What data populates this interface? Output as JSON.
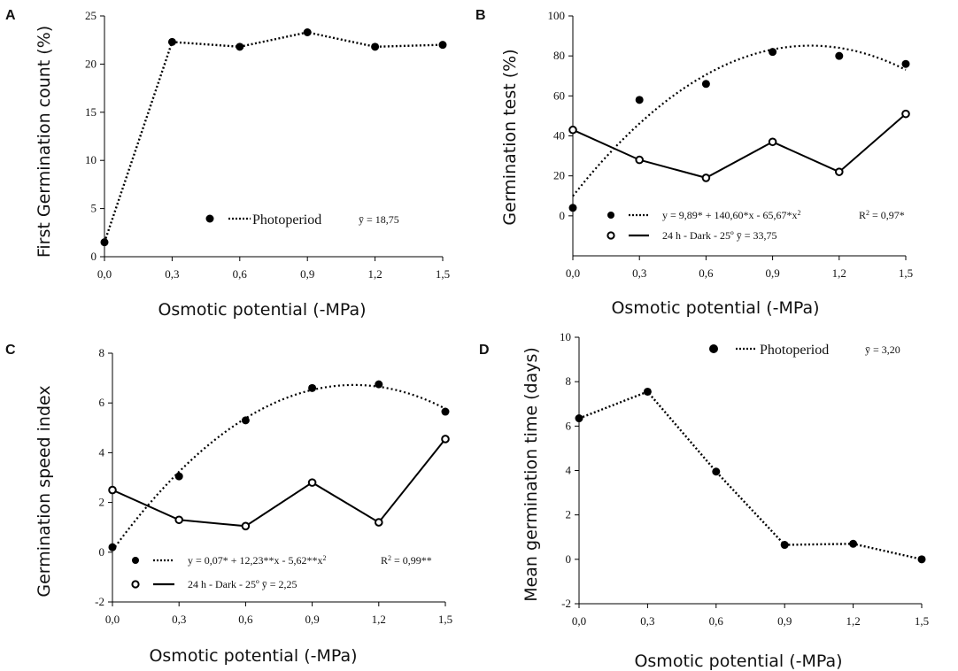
{
  "chart_data": [
    {
      "panel": "A",
      "type": "line",
      "xlabel": "Osmotic potential (-MPa)",
      "ylabel": "First Germination count (%)",
      "xticks": [
        "0,0",
        "0,3",
        "0,6",
        "0,9",
        "1,2",
        "1,5"
      ],
      "yticks": [
        "0",
        "5",
        "10",
        "15",
        "20",
        "25"
      ],
      "xlim": [
        0,
        1.5
      ],
      "ylim": [
        0,
        25
      ],
      "series": [
        {
          "name": "Photoperiod",
          "marker": "filled",
          "line": "dotted",
          "x": [
            0,
            0.3,
            0.6,
            0.9,
            1.2,
            1.5
          ],
          "y": [
            1.5,
            22.3,
            21.8,
            23.3,
            21.8,
            22.0
          ]
        }
      ],
      "legend": [
        {
          "label": "Photoperiod",
          "stat": "ȳ = 18,75",
          "marker": "filled",
          "line": "dotted"
        }
      ]
    },
    {
      "panel": "B",
      "type": "scatter",
      "xlabel": "Osmotic potential (-MPa)",
      "ylabel": "Germination test (%)",
      "xticks": [
        "0,0",
        "0,3",
        "0,6",
        "0,9",
        "1,2",
        "1,5"
      ],
      "yticks": [
        "0",
        "20",
        "40",
        "60",
        "80",
        "100"
      ],
      "xlim": [
        0,
        1.5
      ],
      "ylim": [
        -20,
        100
      ],
      "series": [
        {
          "marker": "filled",
          "line": "none",
          "x": [
            0,
            0.3,
            0.6,
            0.9,
            1.2,
            1.5
          ],
          "y": [
            4,
            58,
            66,
            82,
            80,
            76
          ],
          "fit": {
            "a": 9.89,
            "b": 140.6,
            "c": -65.67,
            "line": "dotted"
          }
        },
        {
          "marker": "open",
          "line": "solid",
          "x": [
            0,
            0.3,
            0.6,
            0.9,
            1.2,
            1.5
          ],
          "y": [
            43,
            28,
            19,
            37,
            22,
            51
          ]
        }
      ],
      "legend": [
        {
          "label": "y = 9,89* + 140,60*x - 65,67*x",
          "sup": "2",
          "stat": "R",
          "stat_sup": "2",
          "stat_tail": " = 0,97*",
          "marker": "filled",
          "line": "dotted"
        },
        {
          "label": "24 h - Dark - 25º  ȳ = 33,75",
          "marker": "open",
          "line": "solid"
        }
      ]
    },
    {
      "panel": "C",
      "type": "scatter",
      "xlabel": "Osmotic potential (-MPa)",
      "ylabel": "Germination speed index",
      "xticks": [
        "0,0",
        "0,3",
        "0,6",
        "0,9",
        "1,2",
        "1,5"
      ],
      "yticks": [
        "-2",
        "0",
        "2",
        "4",
        "6",
        "8"
      ],
      "xlim": [
        0,
        1.5
      ],
      "ylim": [
        -2,
        8
      ],
      "series": [
        {
          "marker": "filled",
          "line": "none",
          "x": [
            0,
            0.3,
            0.6,
            0.9,
            1.2,
            1.5
          ],
          "y": [
            0.2,
            3.05,
            5.3,
            6.6,
            6.75,
            5.65
          ],
          "fit": {
            "a": 0.07,
            "b": 12.23,
            "c": -5.62,
            "line": "dotted"
          }
        },
        {
          "marker": "open",
          "line": "solid",
          "x": [
            0,
            0.3,
            0.6,
            0.9,
            1.2,
            1.5
          ],
          "y": [
            2.5,
            1.3,
            1.05,
            2.8,
            1.2,
            4.55
          ]
        }
      ],
      "legend": [
        {
          "label": "y = 0,07* + 12,23**x - 5,62**x",
          "sup": "2",
          "stat": "R",
          "stat_sup": "2",
          "stat_tail": " = 0,99**",
          "marker": "filled",
          "line": "dotted"
        },
        {
          "label": "24 h - Dark - 25º  ȳ = 2,25",
          "marker": "open",
          "line": "solid"
        }
      ]
    },
    {
      "panel": "D",
      "type": "line",
      "xlabel": "Osmotic potential (-MPa)",
      "ylabel": "Mean germination time (days)",
      "xticks": [
        "0,0",
        "0,3",
        "0,6",
        "0,9",
        "1,2",
        "1,5"
      ],
      "yticks": [
        "-2",
        "0",
        "2",
        "4",
        "6",
        "8",
        "10"
      ],
      "xlim": [
        0,
        1.5
      ],
      "ylim": [
        -2,
        10
      ],
      "series": [
        {
          "name": "Photoperiod",
          "marker": "filled",
          "line": "dotted",
          "x": [
            0,
            0.3,
            0.6,
            0.9,
            1.2,
            1.5
          ],
          "y": [
            6.35,
            7.55,
            3.95,
            0.65,
            0.7,
            0.0
          ]
        }
      ],
      "legend": [
        {
          "label": "Photoperiod",
          "stat": "ȳ = 3,20",
          "marker": "filled",
          "line": "dotted"
        }
      ]
    }
  ]
}
